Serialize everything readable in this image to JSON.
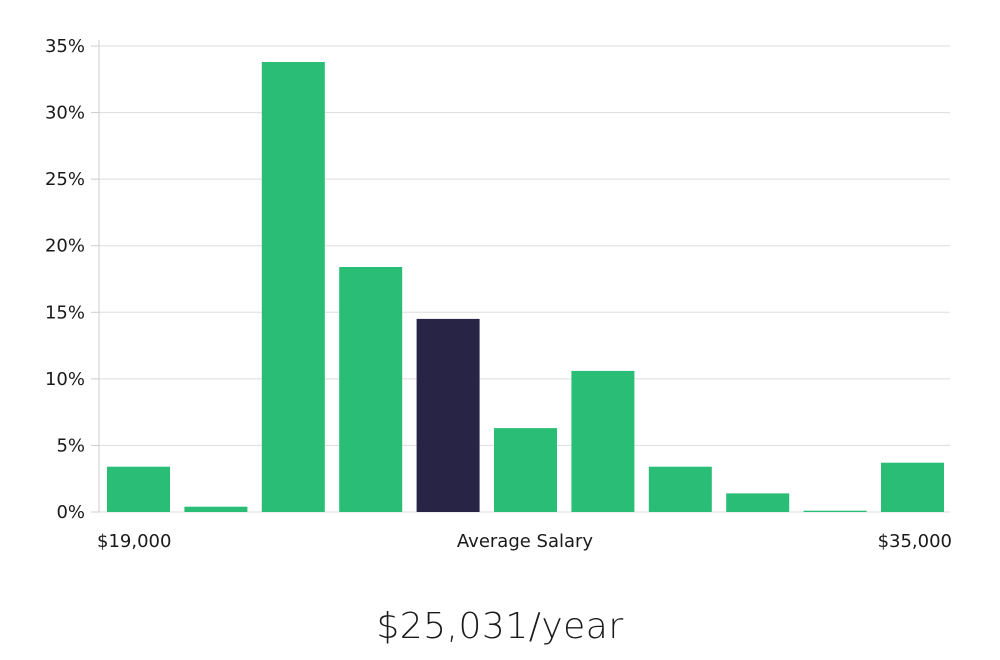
{
  "chart_data": {
    "type": "bar",
    "ylim": [
      0,
      35
    ],
    "y_ticks": [
      "0%",
      "5%",
      "10%",
      "15%",
      "20%",
      "25%",
      "30%",
      "35%"
    ],
    "values": [
      3.4,
      0.4,
      33.8,
      18.4,
      14.5,
      6.3,
      10.6,
      3.4,
      1.4,
      0.1,
      3.7
    ],
    "highlight_index": 4,
    "colors": {
      "bar": "#2abd76",
      "highlight": "#282445",
      "grid": "#dddddd",
      "axis": "#cccccc"
    },
    "grid": true,
    "x_label_left": "$19,000",
    "x_label_center": "Average Salary",
    "x_label_right": "$35,000"
  },
  "summary": {
    "salary_text": "$25,031/year"
  }
}
